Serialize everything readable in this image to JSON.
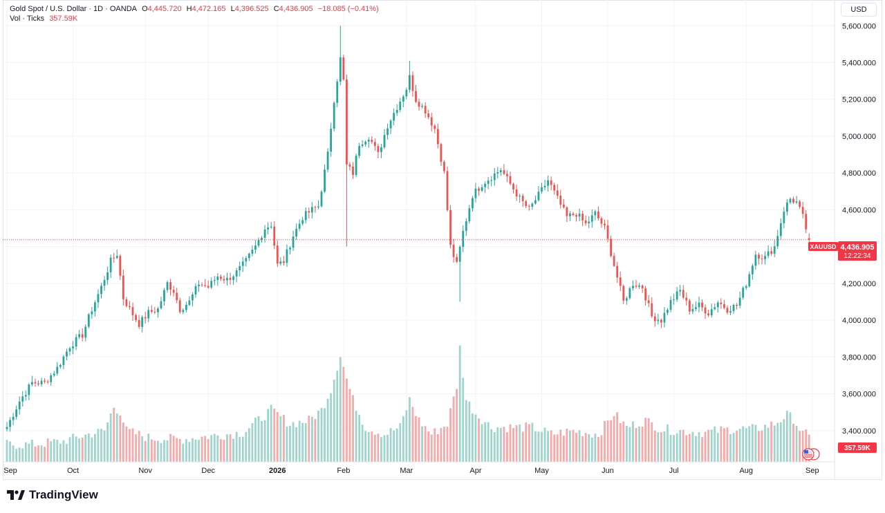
{
  "header": {
    "symbol": "Gold Spot / U.S. Dollar · 1D · OANDA",
    "open_label": "O",
    "open": "4,445.720",
    "high_label": "H",
    "high": "4,472.165",
    "low_label": "L",
    "low": "4,396.525",
    "close_label": "C",
    "close": "4,436.905",
    "change": "−18.085 (−0.41%)",
    "volume_label": "Vol · Ticks",
    "volume": "357.59K"
  },
  "currency": "USD",
  "price_tag": {
    "symbol": "XAUUSD",
    "price": "4,436.905",
    "countdown": "12:22:34"
  },
  "volume_tag": "357.59K",
  "brand": "TradingView",
  "colors": {
    "up": "#26a69a",
    "down": "#ef5350",
    "up_vol": "#9fd4cd",
    "down_vol": "#f5a9a9",
    "last_price": "#f23645"
  },
  "chart_data": {
    "type": "candlestick",
    "interval": "1D",
    "y_axis": {
      "min": 3230,
      "max": 5740,
      "ticks": [
        3400,
        3600,
        3800,
        4000,
        4200,
        4400,
        4600,
        4800,
        5000,
        5200,
        5400,
        5600
      ],
      "tick_labels": [
        "3,400.000",
        "3,600.000",
        "3,800.000",
        "4,000.000",
        "4,200.000",
        "4,400.000",
        "4,600.000",
        "4,800.000",
        "5,000.000",
        "5,200.000",
        "5,400.000",
        "5,600.000"
      ]
    },
    "x_axis": {
      "labels": [
        {
          "text": "Sep",
          "index": 0
        },
        {
          "text": "Oct",
          "index": 21
        },
        {
          "text": "Nov",
          "index": 44
        },
        {
          "text": "Dec",
          "index": 64
        },
        {
          "text": "2026",
          "index": 86,
          "bold": true
        },
        {
          "text": "Feb",
          "index": 107
        },
        {
          "text": "Mar",
          "index": 127
        },
        {
          "text": "Apr",
          "index": 149
        },
        {
          "text": "May",
          "index": 170
        },
        {
          "text": "Jun",
          "index": 191
        },
        {
          "text": "Jul",
          "index": 212
        },
        {
          "text": "Aug",
          "index": 235
        },
        {
          "text": "Sep",
          "index": 256
        }
      ]
    },
    "last_price": 4436.905,
    "series": [
      {
        "name": "Price",
        "anchors": [
          [
            0,
            3420
          ],
          [
            4,
            3560
          ],
          [
            8,
            3660
          ],
          [
            12,
            3660
          ],
          [
            16,
            3740
          ],
          [
            20,
            3860
          ],
          [
            24,
            3920
          ],
          [
            27,
            4060
          ],
          [
            30,
            4180
          ],
          [
            33,
            4320
          ],
          [
            35,
            4360
          ],
          [
            37,
            4120
          ],
          [
            39,
            4060
          ],
          [
            42,
            3980
          ],
          [
            45,
            4040
          ],
          [
            48,
            4060
          ],
          [
            51,
            4200
          ],
          [
            53,
            4160
          ],
          [
            55,
            4060
          ],
          [
            58,
            4100
          ],
          [
            61,
            4200
          ],
          [
            64,
            4180
          ],
          [
            67,
            4240
          ],
          [
            70,
            4220
          ],
          [
            73,
            4260
          ],
          [
            76,
            4320
          ],
          [
            79,
            4400
          ],
          [
            82,
            4500
          ],
          [
            84,
            4520
          ],
          [
            86,
            4300
          ],
          [
            88,
            4320
          ],
          [
            91,
            4460
          ],
          [
            94,
            4560
          ],
          [
            97,
            4600
          ],
          [
            99,
            4620
          ],
          [
            102,
            4900
          ],
          [
            104,
            5200
          ],
          [
            106,
            5420
          ],
          [
            107,
            5300
          ],
          [
            108,
            4840
          ],
          [
            110,
            4800
          ],
          [
            112,
            4960
          ],
          [
            115,
            5000
          ],
          [
            118,
            4900
          ],
          [
            121,
            5060
          ],
          [
            124,
            5160
          ],
          [
            127,
            5260
          ],
          [
            128,
            5320
          ],
          [
            130,
            5200
          ],
          [
            133,
            5140
          ],
          [
            136,
            5040
          ],
          [
            139,
            4800
          ],
          [
            141,
            4400
          ],
          [
            143,
            4300
          ],
          [
            145,
            4480
          ],
          [
            148,
            4680
          ],
          [
            151,
            4740
          ],
          [
            154,
            4780
          ],
          [
            157,
            4820
          ],
          [
            160,
            4740
          ],
          [
            163,
            4660
          ],
          [
            166,
            4600
          ],
          [
            169,
            4680
          ],
          [
            172,
            4760
          ],
          [
            175,
            4660
          ],
          [
            178,
            4560
          ],
          [
            181,
            4580
          ],
          [
            184,
            4520
          ],
          [
            187,
            4580
          ],
          [
            190,
            4500
          ],
          [
            193,
            4300
          ],
          [
            196,
            4100
          ],
          [
            199,
            4200
          ],
          [
            202,
            4180
          ],
          [
            205,
            4020
          ],
          [
            208,
            4000
          ],
          [
            211,
            4100
          ],
          [
            214,
            4160
          ],
          [
            217,
            4060
          ],
          [
            220,
            4080
          ],
          [
            223,
            4040
          ],
          [
            226,
            4100
          ],
          [
            229,
            4060
          ],
          [
            232,
            4080
          ],
          [
            235,
            4200
          ],
          [
            238,
            4360
          ],
          [
            241,
            4340
          ],
          [
            244,
            4400
          ],
          [
            247,
            4600
          ],
          [
            249,
            4660
          ],
          [
            251,
            4640
          ],
          [
            253,
            4560
          ],
          [
            255,
            4436.905
          ]
        ]
      },
      {
        "name": "Vol · Ticks",
        "volume_range": [
          200,
          880
        ],
        "last": 357.59,
        "anchors": [
          [
            0,
            300
          ],
          [
            8,
            300
          ],
          [
            18,
            320
          ],
          [
            26,
            360
          ],
          [
            31,
            380
          ],
          [
            34,
            520
          ],
          [
            36,
            490
          ],
          [
            38,
            380
          ],
          [
            45,
            340
          ],
          [
            55,
            330
          ],
          [
            65,
            350
          ],
          [
            75,
            370
          ],
          [
            84,
            500
          ],
          [
            90,
            420
          ],
          [
            96,
            440
          ],
          [
            100,
            500
          ],
          [
            103,
            620
          ],
          [
            106,
            820
          ],
          [
            108,
            680
          ],
          [
            110,
            560
          ],
          [
            114,
            400
          ],
          [
            120,
            360
          ],
          [
            125,
            400
          ],
          [
            128,
            560
          ],
          [
            131,
            440
          ],
          [
            135,
            360
          ],
          [
            140,
            420
          ],
          [
            143,
            640
          ],
          [
            144,
            860
          ],
          [
            146,
            560
          ],
          [
            149,
            480
          ],
          [
            154,
            400
          ],
          [
            160,
            400
          ],
          [
            167,
            400
          ],
          [
            173,
            360
          ],
          [
            180,
            380
          ],
          [
            188,
            360
          ],
          [
            193,
            480
          ],
          [
            197,
            400
          ],
          [
            203,
            440
          ],
          [
            208,
            390
          ],
          [
            214,
            380
          ],
          [
            222,
            370
          ],
          [
            230,
            390
          ],
          [
            238,
            390
          ],
          [
            244,
            420
          ],
          [
            248,
            470
          ],
          [
            250,
            450
          ],
          [
            253,
            360
          ],
          [
            255,
            357.59
          ]
        ]
      }
    ]
  }
}
